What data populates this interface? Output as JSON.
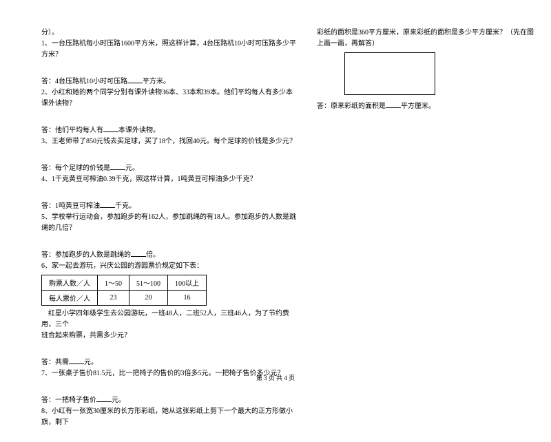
{
  "left": {
    "header": "分）。",
    "q1": "1、一台压路机每小时压路1600平方米，照这样计算，4台压路机10小时可压路多少平方米？",
    "a1_pre": "答：4台压路机10小时可压路",
    "a1_post": "平方米。",
    "q2": "2、小红和她的两个同学分别有课外读物36本、33本和39本。他们平均每人有多少本课外读物？",
    "a2_pre": "答：他们平均每人有",
    "a2_post": "本课外读物。",
    "q3": "3、王老师带了850元钱去买足球，买了18个，找回40元。每个足球的价钱是多少元？",
    "a3_pre": "答：每个足球的价钱是",
    "a3_post": "元。",
    "q4": "4、1千克黄豆可榨油0.39千克，照这样计算，1吨黄豆可榨油多少千克？",
    "a4_pre": "答：1吨黄豆可榨油",
    "a4_post": "千克。",
    "q5": "5、学校举行运动会，参加跑步的有162人，参加跳绳的有18人。参加跑步的人数是跳绳的几倍？",
    "a5_pre": "答：参加跑步的人数是跳绳的",
    "a5_post": "倍。",
    "q6": "6、家一起去游玩，兴庆公园的游园票价规定如下表：",
    "table": {
      "r1": [
        "购票人数／人",
        "1～50",
        "51～100",
        "100以上"
      ],
      "r2": [
        "每人票价／人",
        "23",
        "20",
        "16"
      ]
    },
    "q6b_l1": "红星小学四年级学生去公园游玩，一班48人，二班52人，三班46人，为了节约费用，三个",
    "q6b_l2": "班合起来购票，共需多少元？",
    "a6_pre": "答：共需",
    "a6_post": "元。",
    "q7": "7、一张桌子售价81.5元，比一把椅子的售价的3倍多5元。一把椅子售价多少元？",
    "a7_pre": "答：一把椅子售价",
    "a7_post": "元。",
    "q8": "8、小红有一张宽30厘米的长方形彩纸，她从这张彩纸上剪下一个最大的正方形做小旗，剩下"
  },
  "right": {
    "q8cont": "彩纸的面积是360平方厘米，原来彩纸的面积是多少平方厘米？（先在图上画一画，再解答）",
    "a8_pre": "答：原来彩纸的面积是",
    "a8_post": "平方厘米。"
  },
  "footer": "第 3 页 共 4 页"
}
